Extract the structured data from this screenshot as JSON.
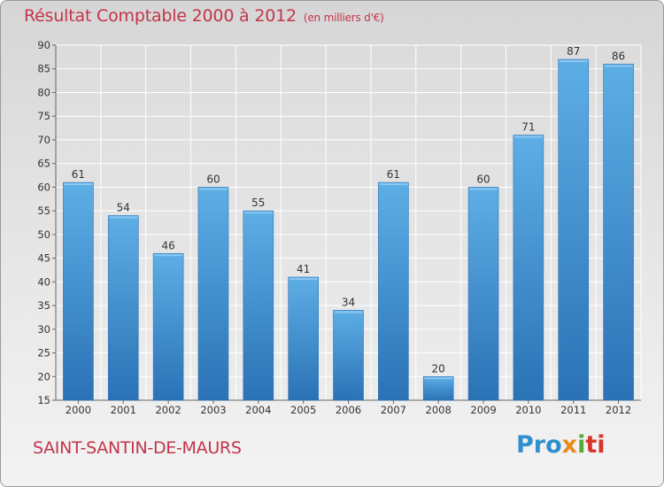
{
  "title": "Résultat Comptable 2000 à 2012",
  "subtitle": "(en milliers d'€)",
  "commune": "SAINT-SANTIN-DE-MAURS",
  "logo": {
    "p1": "Pro",
    "p2": "x",
    "p3": "i",
    "p4": "ti"
  },
  "colors": {
    "bar": "#3d8fd1",
    "bar_dark": "#2a72b5",
    "bar_light": "#5eaee6",
    "title": "#c3354a"
  },
  "chart_data": {
    "type": "bar",
    "title": "Résultat Comptable 2000 à 2012",
    "subtitle": "(en milliers d'€)",
    "categories": [
      "2000",
      "2001",
      "2002",
      "2003",
      "2004",
      "2005",
      "2006",
      "2007",
      "2008",
      "2009",
      "2010",
      "2011",
      "2012"
    ],
    "values": [
      61,
      54,
      46,
      60,
      55,
      41,
      34,
      61,
      20,
      60,
      71,
      87,
      86
    ],
    "ylim": [
      15,
      90
    ],
    "yticks": [
      15,
      20,
      25,
      30,
      35,
      40,
      45,
      50,
      55,
      60,
      65,
      70,
      75,
      80,
      85,
      90
    ],
    "grid": true,
    "data_labels": true
  }
}
